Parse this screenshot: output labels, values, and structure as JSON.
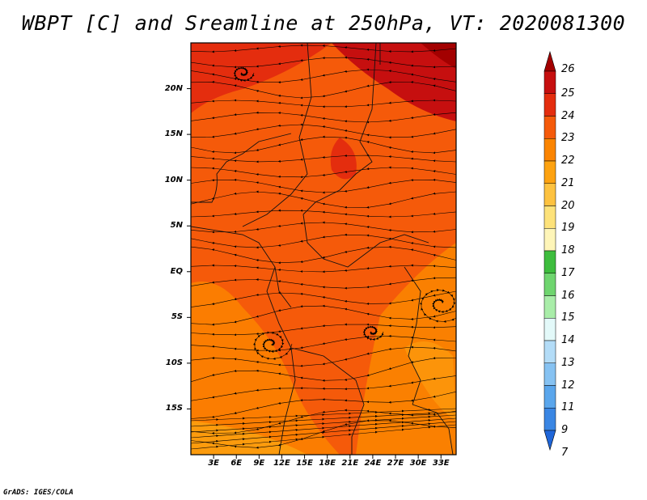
{
  "title": "WBPT [C] and Sreamline at 250hPa, VT: 2020081300",
  "credit": "GrADS: IGES/COLA",
  "map": {
    "lon_range": [
      0,
      35
    ],
    "lat_range": [
      -20,
      25
    ],
    "lat_ticks": [
      {
        "value": 20,
        "label": "20N"
      },
      {
        "value": 15,
        "label": "15N"
      },
      {
        "value": 10,
        "label": "10N"
      },
      {
        "value": 5,
        "label": "5N"
      },
      {
        "value": 0,
        "label": "EQ"
      },
      {
        "value": -5,
        "label": "5S"
      },
      {
        "value": -10,
        "label": "10S"
      },
      {
        "value": -15,
        "label": "15S"
      }
    ],
    "lon_ticks": [
      {
        "value": 3,
        "label": "3E"
      },
      {
        "value": 6,
        "label": "6E"
      },
      {
        "value": 9,
        "label": "9E"
      },
      {
        "value": 12,
        "label": "12E"
      },
      {
        "value": 15,
        "label": "15E"
      },
      {
        "value": 18,
        "label": "18E"
      },
      {
        "value": 21,
        "label": "21E"
      },
      {
        "value": 24,
        "label": "24E"
      },
      {
        "value": 27,
        "label": "27E"
      },
      {
        "value": 30,
        "label": "30E"
      },
      {
        "value": 33,
        "label": "33E"
      }
    ],
    "field_color": "#f55a0a"
  },
  "colorbar": {
    "levels": [
      {
        "label": "26",
        "color": "#a30000"
      },
      {
        "label": "25",
        "color": "#c60f0f"
      },
      {
        "label": "24",
        "color": "#e42d0e"
      },
      {
        "label": "23",
        "color": "#f55a0a"
      },
      {
        "label": "22",
        "color": "#fb8400"
      },
      {
        "label": "21",
        "color": "#fda210"
      },
      {
        "label": "20",
        "color": "#fdc240"
      },
      {
        "label": "19",
        "color": "#fde27a"
      },
      {
        "label": "18",
        "color": "#fef5b8"
      },
      {
        "label": "17",
        "color": "#3ebd3e"
      },
      {
        "label": "16",
        "color": "#6fd56f"
      },
      {
        "label": "15",
        "color": "#a9eda9"
      },
      {
        "label": "14",
        "color": "#e3f9f9"
      },
      {
        "label": "13",
        "color": "#b3dcf7"
      },
      {
        "label": "12",
        "color": "#86c2f2"
      },
      {
        "label": "11",
        "color": "#5aa6ec"
      },
      {
        "label": "9",
        "color": "#3a86e3"
      },
      {
        "label": "7",
        "color": "#1f66d9"
      }
    ]
  }
}
